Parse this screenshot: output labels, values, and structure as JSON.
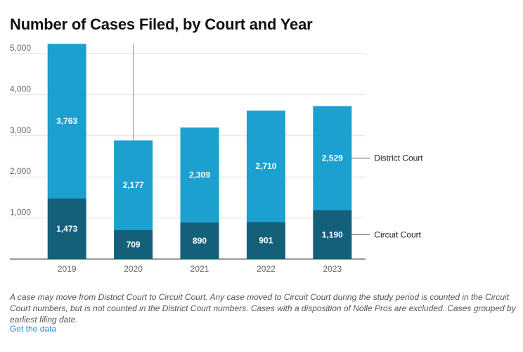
{
  "title": "Number of Cases Filed, by Court and Year",
  "note": "A case may move from District Court to Circuit Court. Any case moved to Circuit Court during the study period is counted in the Circuit Court numbers, but is not counted in the District Court numbers. Cases with a disposition of Nolle Pros are excluded. Cases grouped by earliest filing date.",
  "data_link": "Get the data",
  "chart_data": {
    "type": "bar",
    "stacked": true,
    "categories": [
      "2019",
      "2020",
      "2021",
      "2022",
      "2023"
    ],
    "series": [
      {
        "name": "Circuit Court",
        "values": [
          1473,
          709,
          890,
          901,
          1190
        ],
        "color": "#145f7a"
      },
      {
        "name": "District Court",
        "values": [
          3763,
          2177,
          2309,
          2710,
          2529
        ],
        "color": "#1ca0d0"
      }
    ],
    "value_labels": [
      [
        "1,473",
        "709",
        "890",
        "901",
        "1,190"
      ],
      [
        "3,763",
        "2,177",
        "2,309",
        "2,710",
        "2,529"
      ]
    ],
    "ylim": [
      0,
      5000
    ],
    "yticks": [
      1000,
      2000,
      3000,
      4000,
      5000
    ],
    "ytick_labels": [
      "1,000",
      "2,000",
      "3,000",
      "4,000",
      "5,000"
    ],
    "grid": true,
    "legend": "direct labels at right",
    "highlight_category": "2020"
  }
}
